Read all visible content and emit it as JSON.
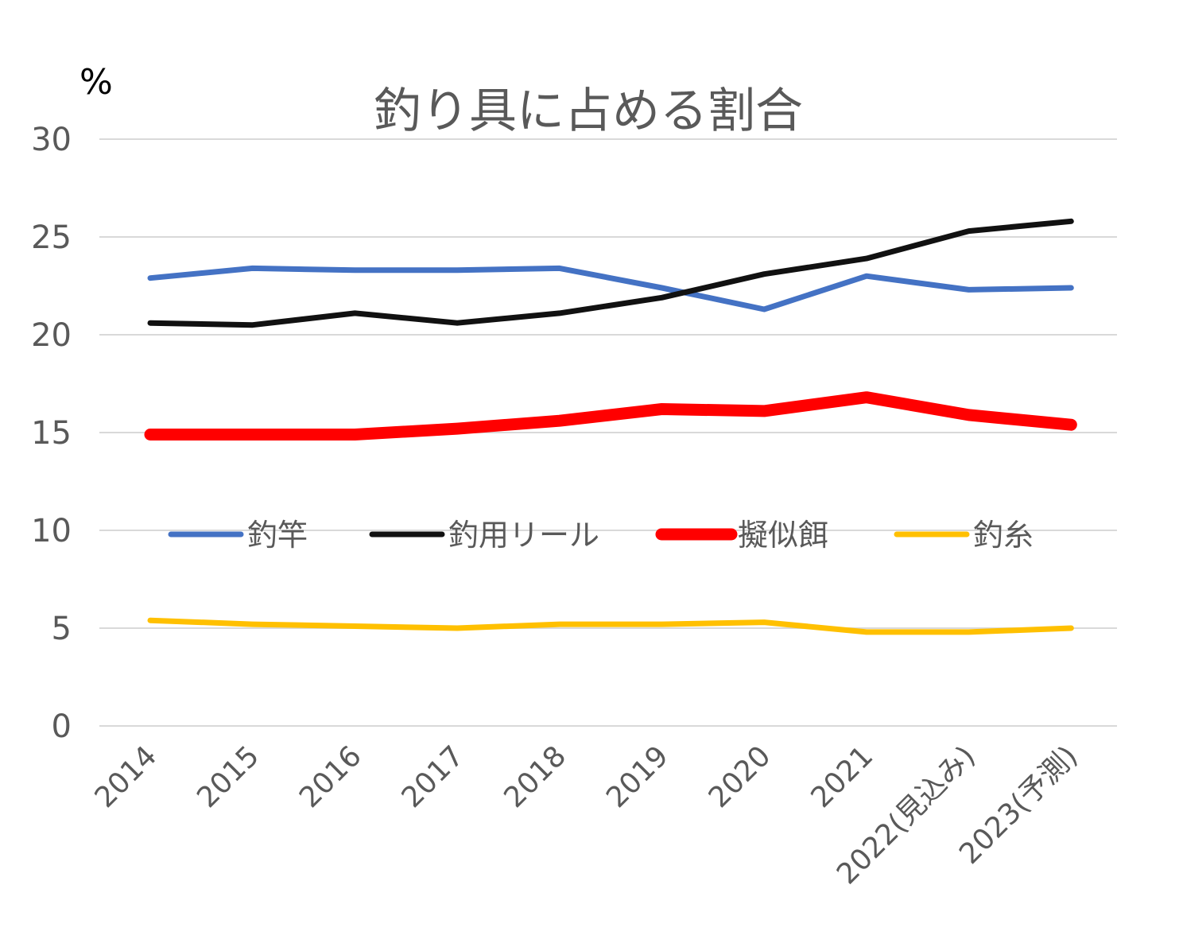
{
  "chart_data": {
    "type": "line",
    "title": "釣り具に占める割合",
    "ylabel": "%",
    "xlabel": "",
    "ylim": [
      0,
      30
    ],
    "yticks": [
      0,
      5,
      10,
      15,
      20,
      25,
      30
    ],
    "categories": [
      "2014",
      "2015",
      "2016",
      "2017",
      "2018",
      "2019",
      "2020",
      "2021",
      "2022(見込み)",
      "2023(予測)"
    ],
    "grid": true,
    "legend_position": "center",
    "series": [
      {
        "name": "釣竿",
        "color": "#4472C4",
        "values": [
          22.9,
          23.4,
          23.3,
          23.3,
          23.4,
          22.4,
          21.3,
          23.0,
          22.3,
          22.4
        ]
      },
      {
        "name": "釣用リール",
        "color": "#111111",
        "values": [
          20.6,
          20.5,
          21.1,
          20.6,
          21.1,
          21.9,
          23.1,
          23.9,
          25.3,
          25.8
        ]
      },
      {
        "name": "擬似餌",
        "color": "#FF0000",
        "values": [
          14.9,
          14.9,
          14.9,
          15.2,
          15.6,
          16.2,
          16.1,
          16.8,
          15.9,
          15.4
        ]
      },
      {
        "name": "釣糸",
        "color": "#FFC000",
        "values": [
          5.4,
          5.2,
          5.1,
          5.0,
          5.2,
          5.2,
          5.3,
          4.8,
          4.8,
          5.0
        ]
      }
    ]
  }
}
